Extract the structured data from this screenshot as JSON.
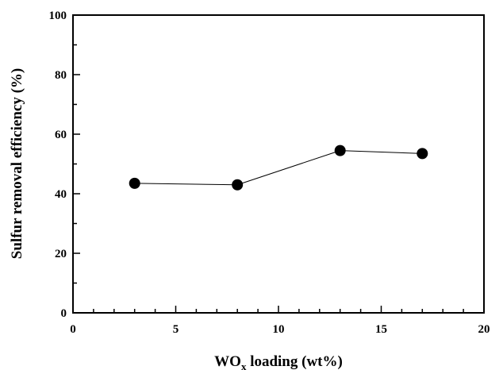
{
  "chart_data": {
    "type": "scatter",
    "title": "",
    "xlabel": "WO",
    "xlabel_subscript": "x",
    "xlabel_suffix": " loading (wt%)",
    "ylabel": "Sulfur removal efficiency (%)",
    "xlim": [
      0,
      20
    ],
    "ylim": [
      0,
      100
    ],
    "x_ticks": [
      "0",
      "5",
      "10",
      "15",
      "20"
    ],
    "y_ticks": [
      "0",
      "20",
      "40",
      "60",
      "80",
      "100"
    ],
    "grid": false,
    "legend": "none",
    "series": [
      {
        "x": [
          3,
          8,
          13,
          17
        ],
        "y": [
          43.5,
          43,
          54.5,
          53.5
        ],
        "marker": "filled-circle",
        "line": true,
        "color": "#000000"
      }
    ]
  }
}
